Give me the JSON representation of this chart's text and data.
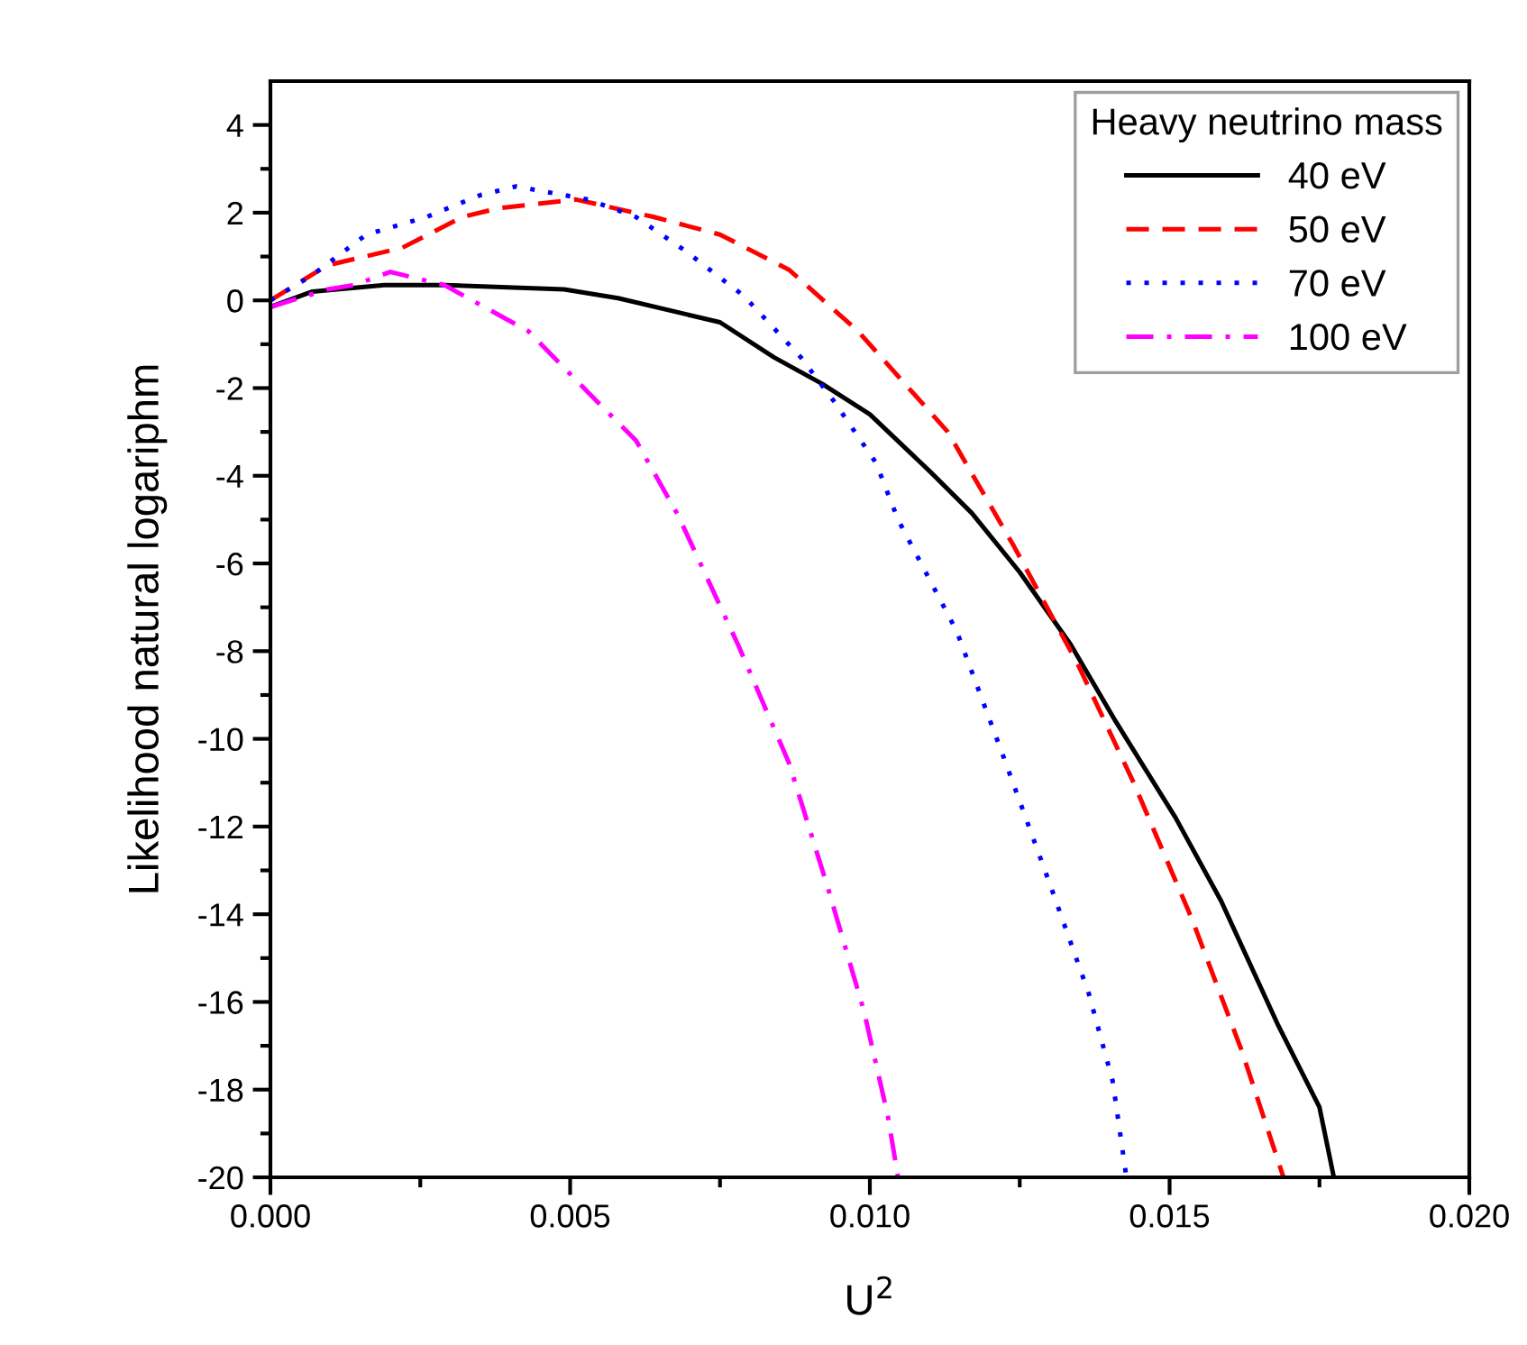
{
  "chart_data": {
    "type": "line",
    "xlabel": "U$^{2}$",
    "ylabel": "Likelihood natural logariphm",
    "legend_title": "Heavy neutrino mass",
    "legend": "top right",
    "grid": false,
    "xlim": [
      0,
      0.02
    ],
    "ylim": [
      -20,
      5
    ],
    "xticks": [
      {
        "value": 0,
        "label": "0.000"
      },
      {
        "value": 0.0025,
        "label": null
      },
      {
        "value": 0.005,
        "label": "0.005"
      },
      {
        "value": 0.0075,
        "label": null
      },
      {
        "value": 0.01,
        "label": "0.010"
      },
      {
        "value": 0.0125,
        "label": null
      },
      {
        "value": 0.015,
        "label": "0.015"
      },
      {
        "value": 0.0175,
        "label": null
      },
      {
        "value": 0.02,
        "label": "0.020"
      }
    ],
    "yticks": [
      -20,
      {
        "value": -19,
        "label": null
      },
      -18,
      {
        "value": -17,
        "label": null
      },
      -16,
      {
        "value": -15,
        "label": null
      },
      -14,
      {
        "value": -13,
        "label": null
      },
      -12,
      {
        "value": -11,
        "label": null
      },
      -10,
      {
        "value": -9,
        "label": null
      },
      -8,
      {
        "value": -7,
        "label": null
      },
      -6,
      {
        "value": -5,
        "label": null
      },
      -4,
      {
        "value": -3,
        "label": null
      },
      -2,
      {
        "value": -1,
        "label": null
      },
      0,
      {
        "value": 1,
        "label": null
      },
      2,
      {
        "value": 3,
        "label": null
      },
      4
    ],
    "series": [
      {
        "name": "40 eV",
        "color": "#000000",
        "line_style": "solid",
        "x": [
          0,
          0.0007,
          0.0019,
          0.0029,
          0.0049,
          0.0058,
          0.0075,
          0.0084,
          0.0092,
          0.01,
          0.011,
          0.0117,
          0.0125,
          0.01335,
          0.0141,
          0.0151,
          0.01586,
          0.0168,
          0.0175,
          0.01774
        ],
        "values": [
          -0.15,
          0.2,
          0.35,
          0.35,
          0.25,
          0.05,
          -0.5,
          -1.3,
          -1.9,
          -2.6,
          -3.9,
          -4.85,
          -6.2,
          -7.85,
          -9.6,
          -11.8,
          -13.7,
          -16.5,
          -18.4,
          -20
        ]
      },
      {
        "name": "50 eV",
        "color": "#ff0000",
        "line_style": "dashed",
        "x": [
          0,
          0.00095,
          0.0022,
          0.0032,
          0.0038,
          0.0051,
          0.0064,
          0.0075,
          0.00865,
          0.0098,
          0.0113,
          0.0124,
          0.01347,
          0.0144,
          0.01537,
          0.0162,
          0.0169
        ],
        "values": [
          0,
          0.8,
          1.2,
          1.9,
          2.1,
          2.3,
          1.9,
          1.5,
          0.7,
          -0.7,
          -3.0,
          -5.6,
          -8.3,
          -11.0,
          -14.1,
          -17.1,
          -20
        ]
      },
      {
        "name": "70 eV",
        "color": "#0000ff",
        "line_style": "dotted",
        "x": [
          0,
          0.00067,
          0.0016,
          0.0026,
          0.0035,
          0.0041,
          0.0053,
          0.0061,
          0.0069,
          0.0079,
          0.00885,
          0.0094,
          0.0101,
          0.01047,
          0.01145,
          0.0122,
          0.013,
          0.01365,
          0.01405,
          0.01428
        ],
        "values": [
          0,
          0.55,
          1.5,
          1.9,
          2.4,
          2.6,
          2.3,
          1.9,
          1.15,
          0.1,
          -1.3,
          -2.3,
          -3.7,
          -5.0,
          -7.55,
          -10.3,
          -13.3,
          -15.8,
          -17.8,
          -20
        ]
      },
      {
        "name": "100 eV",
        "color": "#ff00ff",
        "line_style": "dashdot",
        "x": [
          0,
          0.00095,
          0.0014,
          0.002,
          0.0029,
          0.0043,
          0.0053,
          0.0061,
          0.0068,
          0.0078,
          0.00865,
          0.0093,
          0.0099,
          0.0103,
          0.01047
        ],
        "values": [
          -0.15,
          0.25,
          0.35,
          0.65,
          0.35,
          -0.7,
          -2.1,
          -3.2,
          -4.9,
          -7.85,
          -10.55,
          -13.4,
          -16.2,
          -18.6,
          -20
        ]
      }
    ]
  }
}
